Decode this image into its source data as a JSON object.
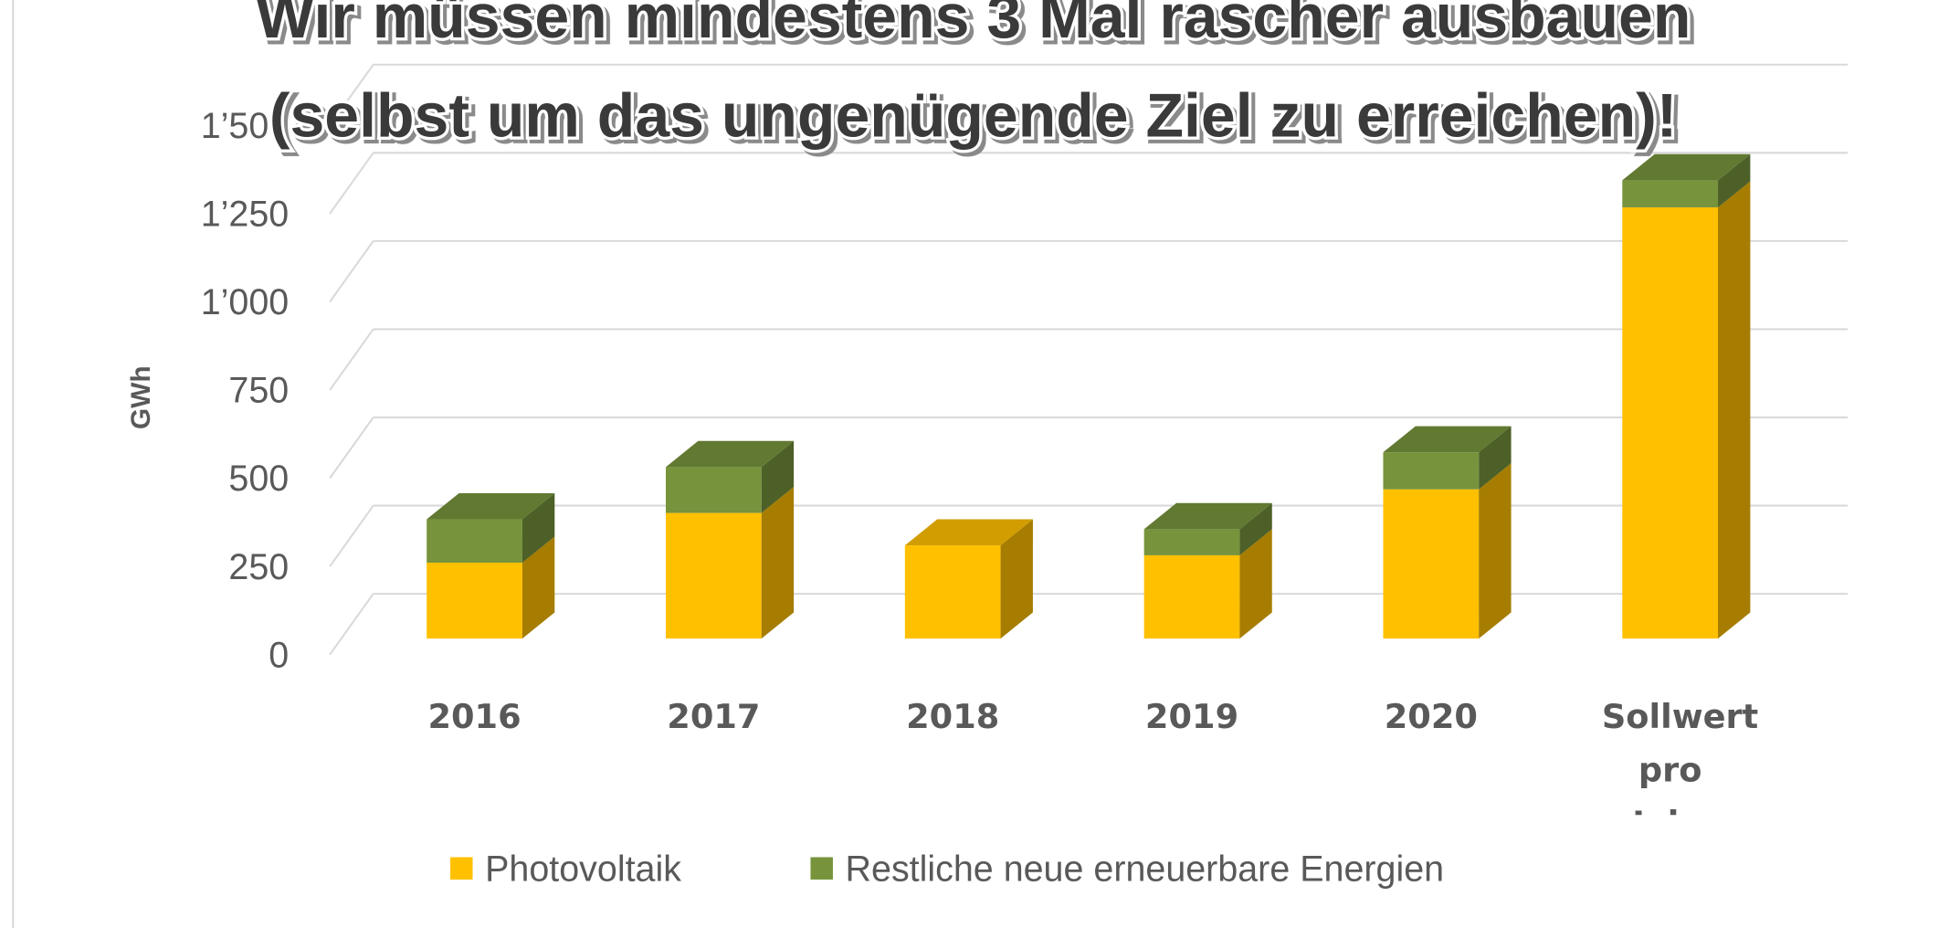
{
  "chart_data": {
    "type": "bar3d_stacked",
    "title": [
      "Wir müssen mindestens 3 Mal rascher ausbauen",
      "(selbst um das ungenügende Ziel zu erreichen)!"
    ],
    "y_label": "GWh",
    "categories": [
      "2016",
      "2017",
      "2018",
      "2019",
      "2020",
      "Sollwert pro Jahr"
    ],
    "series": [
      {
        "name": "Photovoltaik",
        "color": "#FFC000",
        "values": [
          215,
          356,
          264,
          236,
          423,
          1222
        ]
      },
      {
        "name": "Restliche neue erneuerbare Energien",
        "color": "#77933C",
        "values": [
          123,
          130,
          0,
          74,
          105,
          77
        ]
      }
    ],
    "ylim": [
      0,
      1500
    ],
    "yticks": [
      0,
      250,
      500,
      750,
      {
        "value": 1000,
        "label": "1’000"
      },
      {
        "value": 1250,
        "label": "1’250"
      },
      {
        "value": 1500,
        "label": "1’500"
      }
    ],
    "grid": true,
    "legend": "bottom"
  }
}
